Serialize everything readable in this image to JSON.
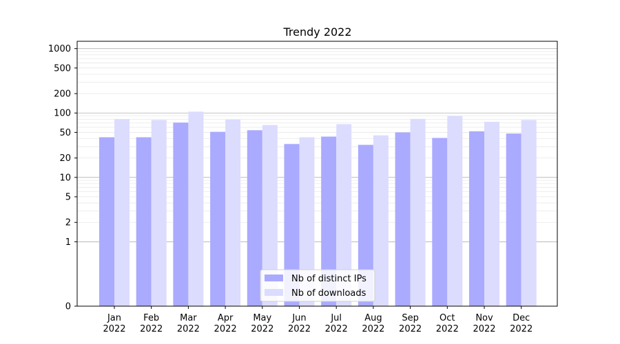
{
  "chart_data": {
    "type": "bar",
    "title": "Trendy 2022",
    "xlabel": "",
    "ylabel": "",
    "yscale": "symlog",
    "ylim": [
      0,
      1300
    ],
    "yticks": [
      0,
      1,
      2,
      5,
      10,
      20,
      50,
      100,
      200,
      500,
      1000
    ],
    "ytick_labels": [
      "0",
      "1",
      "2",
      "5",
      "10",
      "20",
      "50",
      "100",
      "200",
      "500",
      "1000"
    ],
    "categories": [
      [
        "Jan",
        "2022"
      ],
      [
        "Feb",
        "2022"
      ],
      [
        "Mar",
        "2022"
      ],
      [
        "Apr",
        "2022"
      ],
      [
        "May",
        "2022"
      ],
      [
        "Jun",
        "2022"
      ],
      [
        "Jul",
        "2022"
      ],
      [
        "Aug",
        "2022"
      ],
      [
        "Sep",
        "2022"
      ],
      [
        "Oct",
        "2022"
      ],
      [
        "Nov",
        "2022"
      ],
      [
        "Dec",
        "2022"
      ]
    ],
    "series": [
      {
        "name": "Nb of distinct IPs",
        "color": "#aaaaff",
        "values": [
          42,
          42,
          71,
          51,
          54,
          33,
          43,
          32,
          50,
          41,
          52,
          48
        ]
      },
      {
        "name": "Nb of downloads",
        "color": "#dcdcff",
        "values": [
          80,
          78,
          105,
          79,
          65,
          42,
          67,
          45,
          81,
          90,
          73,
          78
        ]
      }
    ],
    "grid": true,
    "legend_position": "bottom-center"
  }
}
